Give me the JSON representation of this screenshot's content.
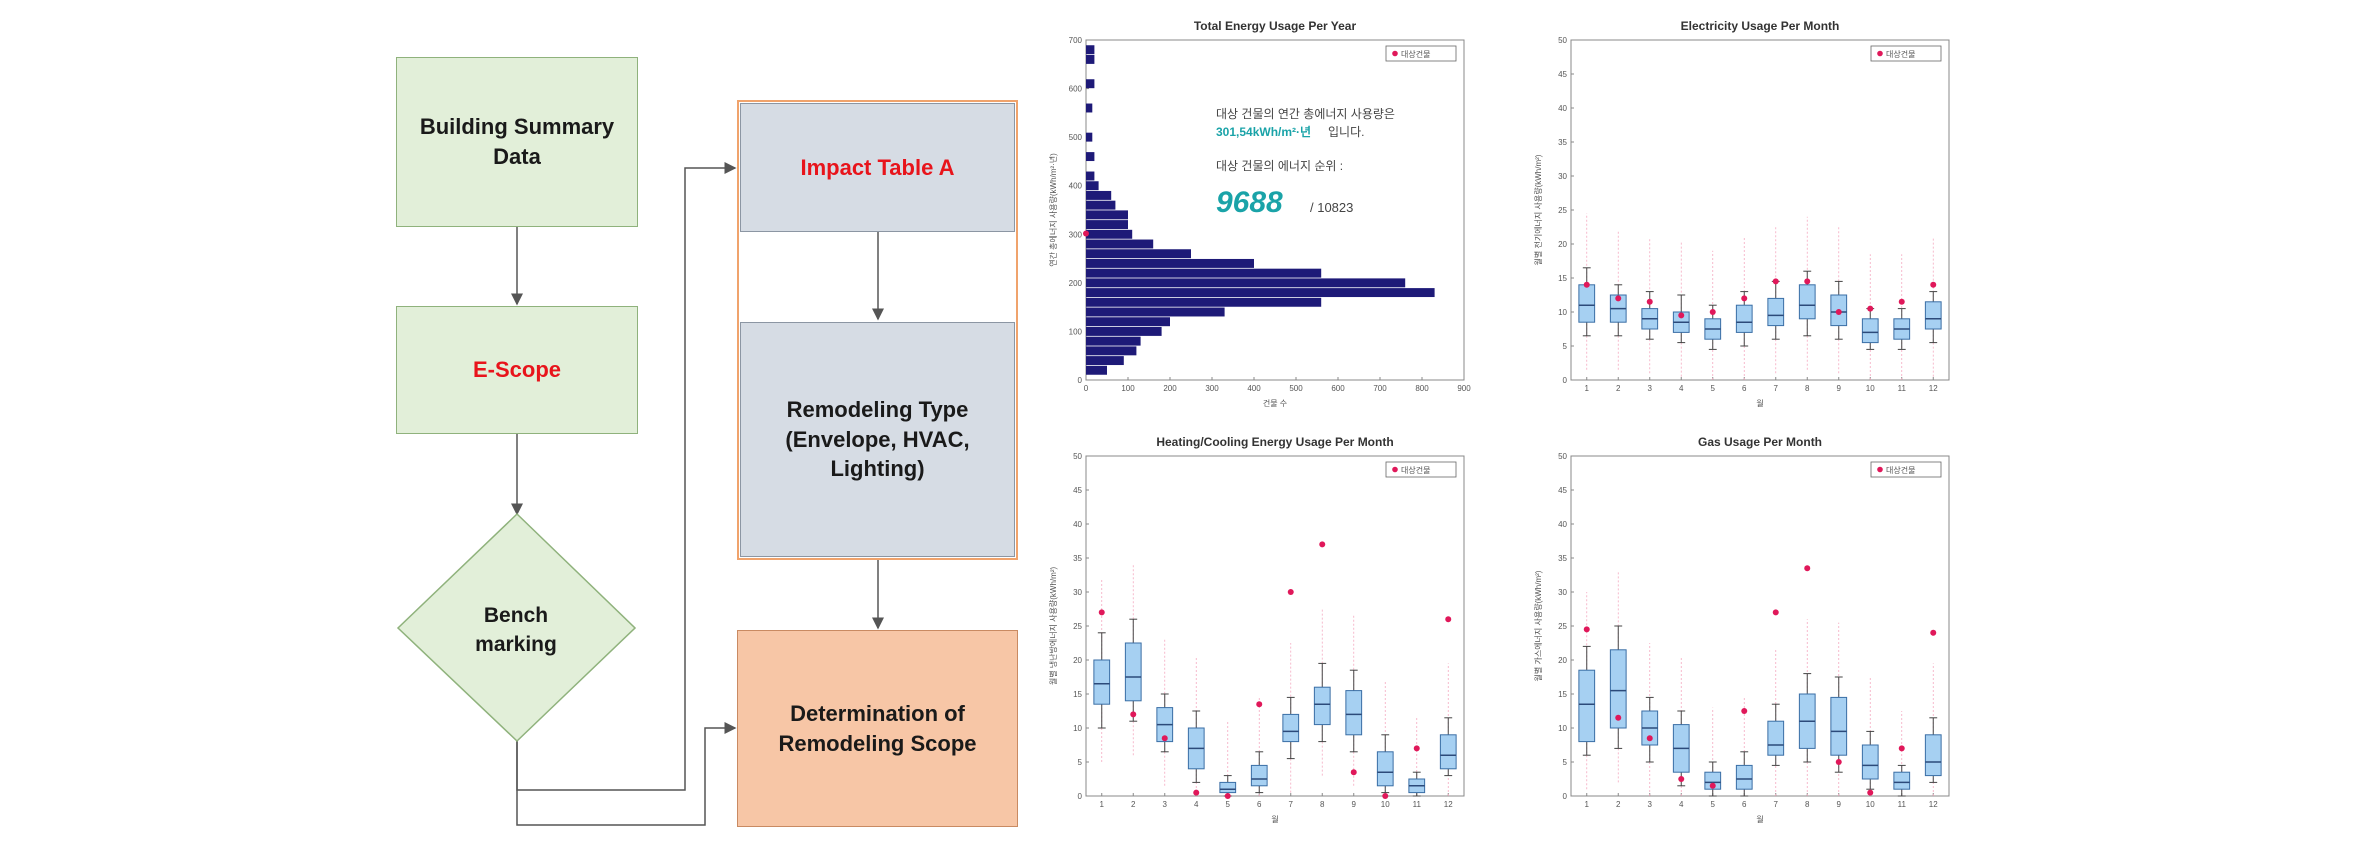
{
  "flowchart": {
    "building_summary": "Building Summary\nData",
    "e_scope": "E-Scope",
    "benchmarking": "Bench\nmarking",
    "impact_table": "Impact Table A",
    "remodeling_type": "Remodeling Type\n(Envelope, HVAC,\nLighting)",
    "determination": "Determination of\nRemodeling Scope",
    "colors": {
      "green": "#e2efd9",
      "gray": "#d6dce4",
      "orange": "#f7c6a6",
      "red_text": "#e8141b"
    }
  },
  "chart_data": [
    {
      "type": "bar",
      "orientation": "horizontal",
      "title": "Total Energy Usage Per Year",
      "xlabel": "건물 수",
      "ylabel": "연간 총에너지 사용량(kWh/m²·년)",
      "xlim": [
        0,
        900
      ],
      "ylim": [
        0,
        700
      ],
      "xticks": [
        0,
        100,
        200,
        300,
        400,
        500,
        600,
        700,
        800,
        900
      ],
      "yticks": [
        0,
        100,
        200,
        300,
        400,
        500,
        600,
        700
      ],
      "legend": "대상건물",
      "legend_position": "top-right",
      "annotation_line1": "대상 건물의 연간 총에너지 사용량은",
      "annotation_value": "301,54kWh/m²·년",
      "annotation_suffix": "입니다.",
      "annotation_line3": "대상 건물의 에너지 순위 :",
      "rank": "9688",
      "rank_total": "/ 10823",
      "target_value": 301.54,
      "bins": [
        {
          "y": 20,
          "count": 50
        },
        {
          "y": 40,
          "count": 90
        },
        {
          "y": 60,
          "count": 120
        },
        {
          "y": 80,
          "count": 130
        },
        {
          "y": 100,
          "count": 180
        },
        {
          "y": 120,
          "count": 200
        },
        {
          "y": 140,
          "count": 330
        },
        {
          "y": 160,
          "count": 560
        },
        {
          "y": 180,
          "count": 830
        },
        {
          "y": 200,
          "count": 760
        },
        {
          "y": 220,
          "count": 560
        },
        {
          "y": 240,
          "count": 400
        },
        {
          "y": 260,
          "count": 250
        },
        {
          "y": 280,
          "count": 160
        },
        {
          "y": 300,
          "count": 110
        },
        {
          "y": 320,
          "count": 100
        },
        {
          "y": 340,
          "count": 100
        },
        {
          "y": 360,
          "count": 70
        },
        {
          "y": 380,
          "count": 60
        },
        {
          "y": 400,
          "count": 30
        },
        {
          "y": 420,
          "count": 20
        },
        {
          "y": 460,
          "count": 20
        },
        {
          "y": 500,
          "count": 15
        },
        {
          "y": 560,
          "count": 15
        },
        {
          "y": 610,
          "count": 20
        },
        {
          "y": 660,
          "count": 20
        },
        {
          "y": 680,
          "count": 20
        }
      ]
    },
    {
      "type": "box",
      "title": "Electricity Usage Per Month",
      "xlabel": "월",
      "ylabel": "월별 전기에너지 사용량(kWh/m²)",
      "ylim": [
        0,
        50
      ],
      "yticks": [
        0,
        5,
        10,
        15,
        20,
        25,
        30,
        35,
        40,
        45,
        50
      ],
      "categories": [
        "1",
        "2",
        "3",
        "4",
        "5",
        "6",
        "7",
        "8",
        "9",
        "10",
        "11",
        "12"
      ],
      "legend": "대상건물",
      "legend_position": "top-right",
      "boxes": [
        {
          "min": 6.5,
          "q1": 8.5,
          "median": 11,
          "q3": 14,
          "max": 16.5
        },
        {
          "min": 6.5,
          "q1": 8.5,
          "median": 10.5,
          "q3": 12.5,
          "max": 14
        },
        {
          "min": 6,
          "q1": 7.5,
          "median": 9,
          "q3": 10.5,
          "max": 13
        },
        {
          "min": 5.5,
          "q1": 7,
          "median": 8.5,
          "q3": 10,
          "max": 12.5
        },
        {
          "min": 4.5,
          "q1": 6,
          "median": 7.5,
          "q3": 9,
          "max": 11
        },
        {
          "min": 5,
          "q1": 7,
          "median": 8.5,
          "q3": 11,
          "max": 13
        },
        {
          "min": 6,
          "q1": 8,
          "median": 9.5,
          "q3": 12,
          "max": 14.5
        },
        {
          "min": 6.5,
          "q1": 9,
          "median": 11,
          "q3": 14,
          "max": 16
        },
        {
          "min": 6,
          "q1": 8,
          "median": 10,
          "q3": 12.5,
          "max": 14.5
        },
        {
          "min": 4.5,
          "q1": 5.5,
          "median": 7,
          "q3": 9,
          "max": 10.5
        },
        {
          "min": 4.5,
          "q1": 6,
          "median": 7.5,
          "q3": 9,
          "max": 10.5
        },
        {
          "min": 5.5,
          "q1": 7.5,
          "median": 9,
          "q3": 11.5,
          "max": 13
        }
      ],
      "target": [
        14,
        12,
        11.5,
        9.5,
        10,
        12,
        14.5,
        14.5,
        10,
        10.5,
        11.5,
        14
      ]
    },
    {
      "type": "box",
      "title": "Heating/Cooling Energy Usage Per Month",
      "xlabel": "월",
      "ylabel": "월별 냉난방에너지 사용량(kWh/m²)",
      "ylim": [
        0,
        50
      ],
      "yticks": [
        0,
        5,
        10,
        15,
        20,
        25,
        30,
        35,
        40,
        45,
        50
      ],
      "categories": [
        "1",
        "2",
        "3",
        "4",
        "5",
        "6",
        "7",
        "8",
        "9",
        "10",
        "11",
        "12"
      ],
      "legend": "대상건물",
      "legend_position": "top-right",
      "boxes": [
        {
          "min": 10,
          "q1": 13.5,
          "median": 16.5,
          "q3": 20,
          "max": 24
        },
        {
          "min": 11,
          "q1": 14,
          "median": 17.5,
          "q3": 22.5,
          "max": 26
        },
        {
          "min": 6.5,
          "q1": 8,
          "median": 10.5,
          "q3": 13,
          "max": 15
        },
        {
          "min": 2,
          "q1": 4,
          "median": 7,
          "q3": 10,
          "max": 12.5
        },
        {
          "min": 0,
          "q1": 0.5,
          "median": 1,
          "q3": 2,
          "max": 3
        },
        {
          "min": 0.5,
          "q1": 1.5,
          "median": 2.5,
          "q3": 4.5,
          "max": 6.5
        },
        {
          "min": 5.5,
          "q1": 8,
          "median": 9.5,
          "q3": 12,
          "max": 14.5
        },
        {
          "min": 8,
          "q1": 10.5,
          "median": 13.5,
          "q3": 16,
          "max": 19.5
        },
        {
          "min": 6.5,
          "q1": 9,
          "median": 12,
          "q3": 15.5,
          "max": 18.5
        },
        {
          "min": 0.5,
          "q1": 1.5,
          "median": 3.5,
          "q3": 6.5,
          "max": 9
        },
        {
          "min": 0,
          "q1": 0.5,
          "median": 1.5,
          "q3": 2.5,
          "max": 3.5
        },
        {
          "min": 3,
          "q1": 4,
          "median": 6,
          "q3": 9,
          "max": 11.5
        }
      ],
      "target": [
        27,
        12,
        8.5,
        0.5,
        0,
        13.5,
        30,
        37,
        3.5,
        0,
        7,
        26
      ]
    },
    {
      "type": "box",
      "title": "Gas Usage Per Month",
      "xlabel": "월",
      "ylabel": "월별 가스에너지 사용량(kWh/m²)",
      "ylim": [
        0,
        50
      ],
      "yticks": [
        0,
        5,
        10,
        15,
        20,
        25,
        30,
        35,
        40,
        45,
        50
      ],
      "categories": [
        "1",
        "2",
        "3",
        "4",
        "5",
        "6",
        "7",
        "8",
        "9",
        "10",
        "11",
        "12"
      ],
      "legend": "대상건물",
      "legend_position": "top-right",
      "boxes": [
        {
          "min": 6,
          "q1": 8,
          "median": 13.5,
          "q3": 18.5,
          "max": 22
        },
        {
          "min": 7,
          "q1": 10,
          "median": 15.5,
          "q3": 21.5,
          "max": 25
        },
        {
          "min": 5,
          "q1": 7.5,
          "median": 10,
          "q3": 12.5,
          "max": 14.5
        },
        {
          "min": 1.5,
          "q1": 3.5,
          "median": 7,
          "q3": 10.5,
          "max": 12.5
        },
        {
          "min": 0,
          "q1": 1,
          "median": 2,
          "q3": 3.5,
          "max": 5
        },
        {
          "min": 0,
          "q1": 1,
          "median": 2.5,
          "q3": 4.5,
          "max": 6.5
        },
        {
          "min": 4.5,
          "q1": 6,
          "median": 7.5,
          "q3": 11,
          "max": 13.5
        },
        {
          "min": 5,
          "q1": 7,
          "median": 11,
          "q3": 15,
          "max": 18
        },
        {
          "min": 3.5,
          "q1": 6,
          "median": 9.5,
          "q3": 14.5,
          "max": 17.5
        },
        {
          "min": 1,
          "q1": 2.5,
          "median": 4.5,
          "q3": 7.5,
          "max": 9.5
        },
        {
          "min": 0,
          "q1": 1,
          "median": 2,
          "q3": 3.5,
          "max": 4.5
        },
        {
          "min": 2,
          "q1": 3,
          "median": 5,
          "q3": 9,
          "max": 11.5
        }
      ],
      "target": [
        24.5,
        11.5,
        8.5,
        2.5,
        1.5,
        12.5,
        27,
        33.5,
        5,
        0.5,
        7,
        24
      ]
    }
  ]
}
